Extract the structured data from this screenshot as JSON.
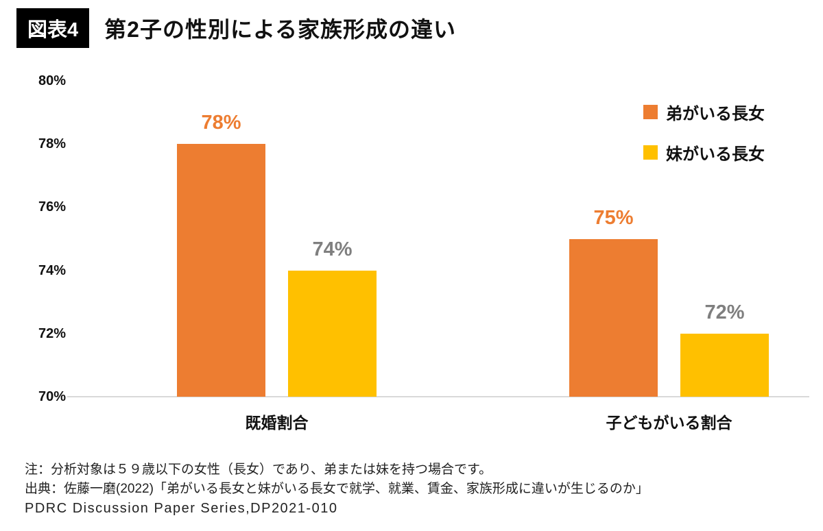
{
  "header": {
    "badge": "図表4",
    "title": "第2子の性別による家族形成の違い"
  },
  "chart_data": {
    "type": "bar",
    "title": "第2子の性別による家族形成の違い",
    "categories": [
      "既婚割合",
      "子どもがいる割合"
    ],
    "series": [
      {
        "name": "弟がいる長女",
        "color": "#ED7D31",
        "label_color": "#ED7D31",
        "values": [
          78,
          75
        ]
      },
      {
        "name": "妹がいる長女",
        "color": "#FFC000",
        "label_color": "#7F7F7F",
        "values": [
          74,
          72
        ]
      }
    ],
    "value_suffix": "%",
    "ylim": [
      70,
      80
    ],
    "ytick_values": [
      80,
      78,
      76,
      74,
      72,
      70
    ],
    "ytick_labels": [
      "80%",
      "78%",
      "76%",
      "74%",
      "72%",
      "70%"
    ],
    "grid": false,
    "legend_position": "top-right",
    "baseline_color": "#d9d9d9"
  },
  "footer": {
    "note1": "注：分析対象は５９歳以下の女性（長女）であり、弟または妹を持つ場合です。",
    "note2": "出典：佐藤一磨(2022)「弟がいる長女と妹がいる長女で就学、就業、賃金、家族形成に違いが生じるのか」",
    "note3": "PDRC Discussion Paper Series,DP2021-010"
  }
}
